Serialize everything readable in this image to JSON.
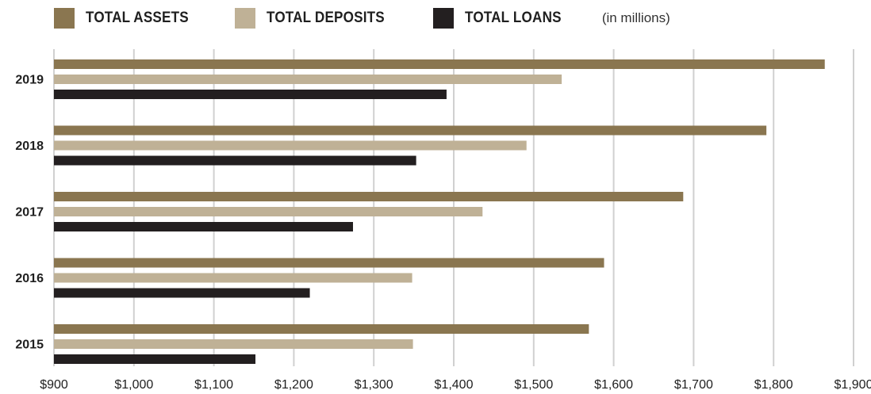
{
  "legend": {
    "assets_label": "TOTAL ASSETS",
    "deposits_label": "TOTAL DEPOSITS",
    "loans_label": "TOTAL LOANS",
    "unit_note": "(in millions)"
  },
  "colors": {
    "assets": "#8a7650",
    "deposits": "#bfb196",
    "loans": "#231f20",
    "grid": "#d0d0d0"
  },
  "chart_data": {
    "type": "bar",
    "orientation": "horizontal",
    "categories": [
      "2019",
      "2018",
      "2017",
      "2016",
      "2015"
    ],
    "series": [
      {
        "name": "TOTAL ASSETS",
        "values": [
          1864,
          1791,
          1687,
          1588,
          1569
        ]
      },
      {
        "name": "TOTAL DEPOSITS",
        "values": [
          1535,
          1491,
          1436,
          1348,
          1349
        ]
      },
      {
        "name": "TOTAL LOANS",
        "values": [
          1391,
          1353,
          1274,
          1220,
          1152
        ]
      }
    ],
    "xlim": [
      900,
      1900
    ],
    "x_ticks": [
      "$900",
      "$1,000",
      "$1,100",
      "$1,200",
      "$1,300",
      "$1,400",
      "$1,500",
      "$1,600",
      "$1,700",
      "$1,800",
      "$1,900"
    ],
    "grid": true,
    "legend_position": "top"
  }
}
